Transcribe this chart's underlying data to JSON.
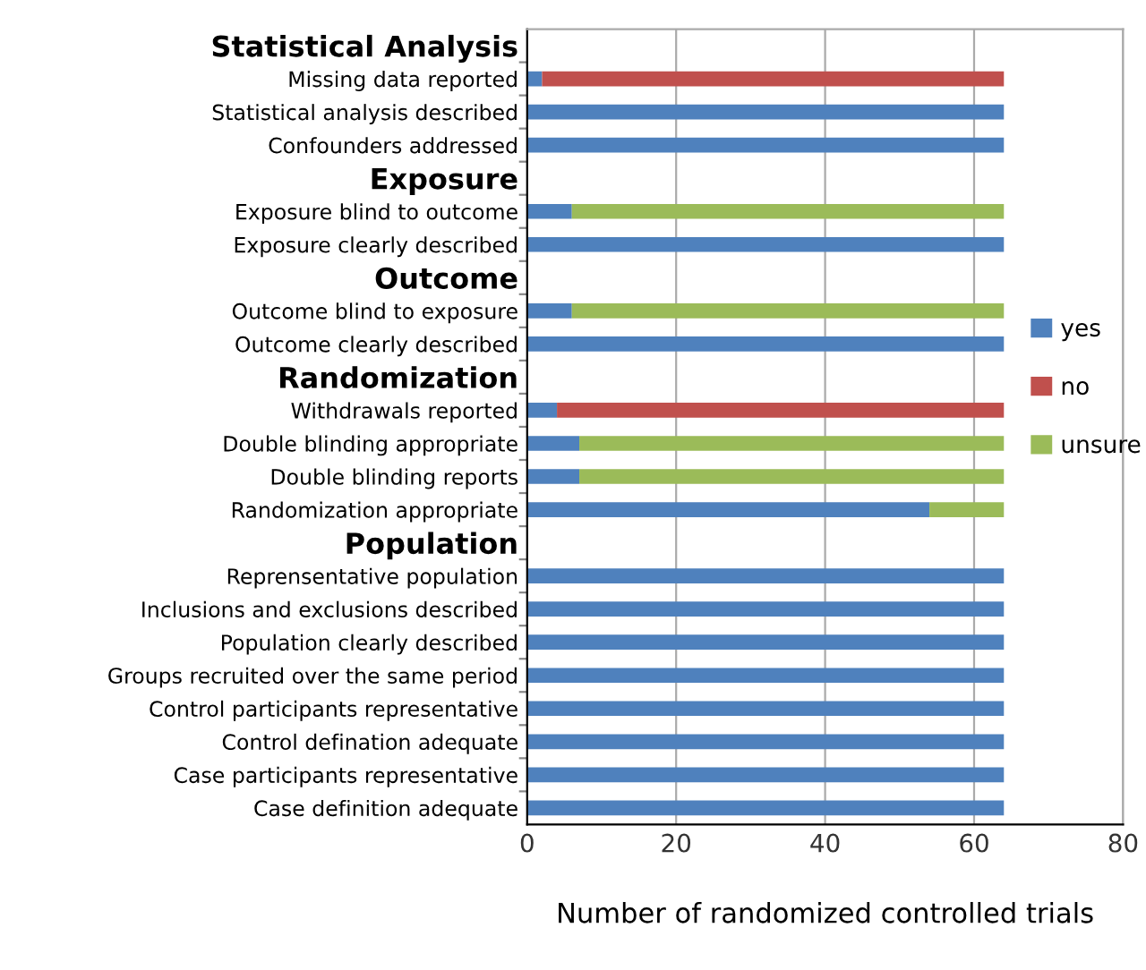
{
  "chart_data": {
    "type": "bar",
    "orientation": "horizontal",
    "stacked": true,
    "xlabel": "Number of randomized controlled trials",
    "categories": [
      "Statistical Analysis",
      "Missing data reported",
      "Statistical analysis described",
      "Confounders addressed",
      "Exposure",
      "Exposure blind to outcome",
      "Exposure clearly described",
      "Outcome",
      "Outcome blind to exposure",
      "Outcome clearly described",
      "Randomization",
      "Withdrawals reported",
      "Double blinding appropriate",
      "Double blinding reports",
      "Randomization appropriate",
      "Population",
      "Reprensentative population",
      "Inclusions and exclusions described",
      "Population clearly described",
      "Groups recruited over the same period",
      "Control participants representative",
      "Control defination adequate",
      "Case participants representative",
      "Case definition adequate"
    ],
    "series": [
      {
        "name": "yes",
        "color": "#4f81bd",
        "values": [
          null,
          2,
          64,
          64,
          null,
          6,
          64,
          null,
          6,
          64,
          null,
          4,
          7,
          7,
          54,
          null,
          64,
          64,
          64,
          64,
          64,
          64,
          64,
          64
        ]
      },
      {
        "name": "no",
        "color": "#c0504d",
        "values": [
          null,
          62,
          null,
          null,
          null,
          null,
          null,
          null,
          null,
          null,
          null,
          60,
          null,
          null,
          null,
          null,
          null,
          null,
          null,
          null,
          null,
          null,
          null,
          null
        ]
      },
      {
        "name": "unsure",
        "color": "#9bbb59",
        "values": [
          null,
          null,
          null,
          null,
          null,
          58,
          null,
          null,
          58,
          null,
          null,
          null,
          57,
          57,
          10,
          null,
          null,
          null,
          null,
          null,
          null,
          null,
          null,
          null
        ]
      }
    ],
    "xlim": [
      0,
      80
    ],
    "xticks": [
      0,
      20,
      40,
      60,
      80
    ],
    "grid": "x",
    "legend": "right"
  }
}
